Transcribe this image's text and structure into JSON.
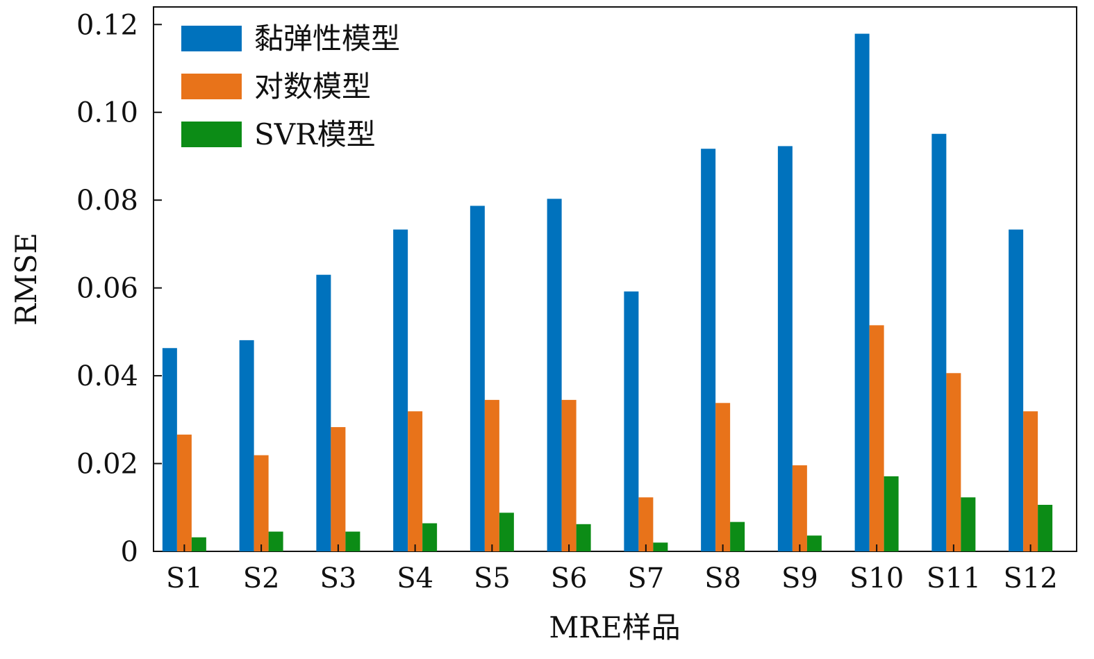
{
  "chart_data": {
    "type": "bar",
    "xlabel": "MRE样品",
    "ylabel": "RMSE",
    "categories": [
      "S1",
      "S2",
      "S3",
      "S4",
      "S5",
      "S6",
      "S7",
      "S8",
      "S9",
      "S10",
      "S11",
      "S12"
    ],
    "ylim": [
      0,
      0.124
    ],
    "yticks": [
      0,
      0.02,
      0.04,
      0.06,
      0.08,
      0.1,
      0.12
    ],
    "ytick_labels": [
      "0",
      "0.02",
      "0.04",
      "0.06",
      "0.08",
      "0.10",
      "0.12"
    ],
    "grid": false,
    "legend_position": "top-left",
    "series": [
      {
        "name": "黏弹性模型",
        "color": "#0072BD",
        "values": [
          0.0463,
          0.0481,
          0.063,
          0.0733,
          0.0787,
          0.0803,
          0.0592,
          0.0917,
          0.0923,
          0.1179,
          0.0951,
          0.0733
        ]
      },
      {
        "name": "对数模型",
        "color": "#E8731A",
        "values": [
          0.0266,
          0.0219,
          0.0283,
          0.0319,
          0.0345,
          0.0345,
          0.0123,
          0.0338,
          0.0196,
          0.0515,
          0.0406,
          0.0319
        ]
      },
      {
        "name": "SVR模型",
        "color": "#0C8C16",
        "values": [
          0.0032,
          0.0045,
          0.0045,
          0.0064,
          0.0088,
          0.0062,
          0.002,
          0.0067,
          0.0036,
          0.0171,
          0.0123,
          0.0106
        ]
      }
    ]
  }
}
